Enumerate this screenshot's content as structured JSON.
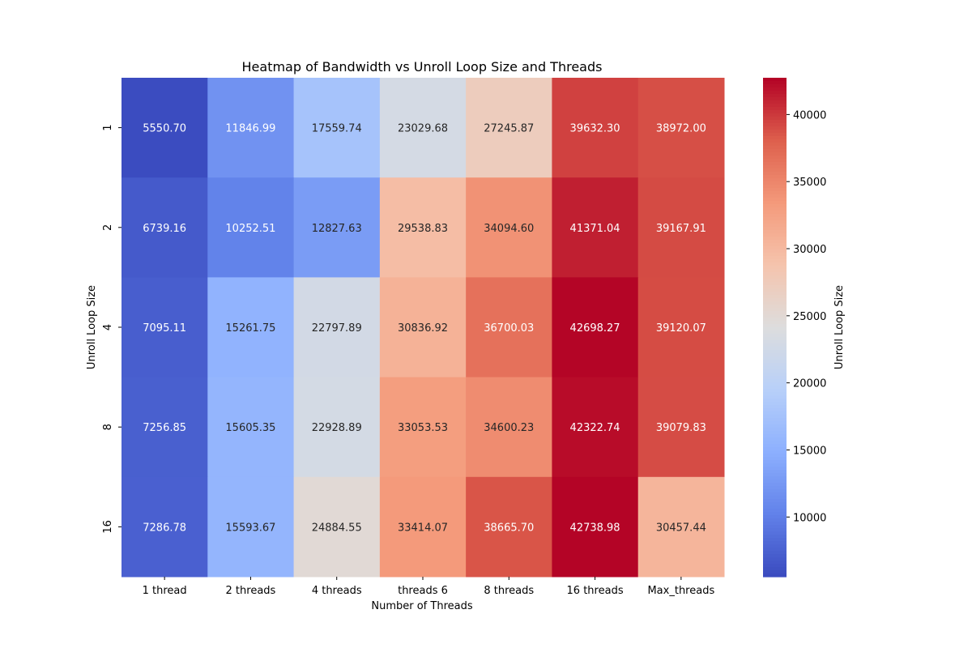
{
  "chart_data": {
    "type": "heatmap",
    "title": "Heatmap of Bandwidth vs Unroll Loop Size and Threads",
    "xlabel": "Number of Threads",
    "ylabel": "Unroll Loop Size",
    "colorbar_label": "Unroll Loop Size",
    "colormap": "coolwarm",
    "x_categories": [
      "1 thread",
      "2 threads",
      "4 threads",
      "threads 6",
      "8 threads",
      "16 threads",
      "Max_threads"
    ],
    "y_categories": [
      "1",
      "2",
      "4",
      "8",
      "16"
    ],
    "values": [
      [
        5550.7,
        11846.99,
        17559.74,
        23029.68,
        27245.87,
        39632.3,
        38972.0
      ],
      [
        6739.16,
        10252.51,
        12827.63,
        29538.83,
        34094.6,
        41371.04,
        39167.91
      ],
      [
        7095.11,
        15261.75,
        22797.89,
        30836.92,
        36700.03,
        42698.27,
        39120.07
      ],
      [
        7256.85,
        15605.35,
        22928.89,
        33053.53,
        34600.23,
        42322.74,
        39079.83
      ],
      [
        7286.78,
        15593.67,
        24884.55,
        33414.07,
        38665.7,
        42738.98,
        30457.44
      ]
    ],
    "value_range": [
      5550.7,
      42738.98
    ],
    "colorbar_ticks": [
      10000,
      15000,
      20000,
      25000,
      30000,
      35000,
      40000
    ]
  }
}
